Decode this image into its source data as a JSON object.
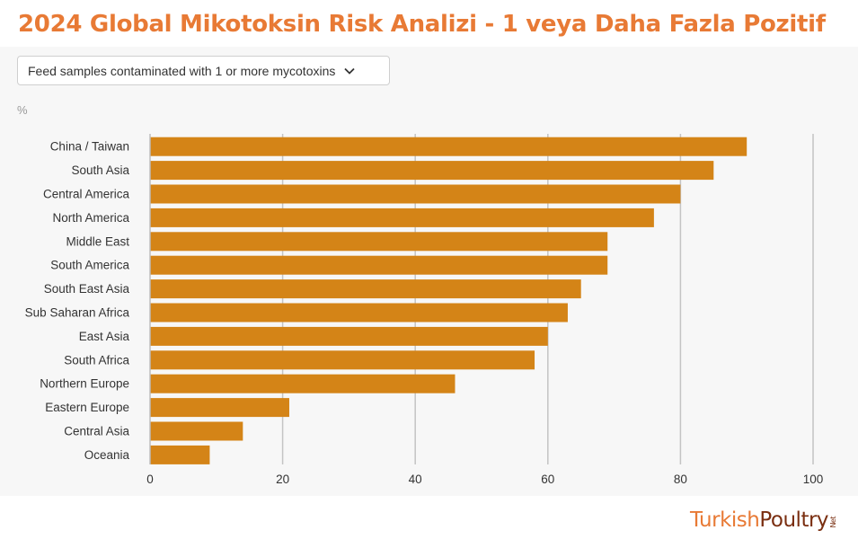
{
  "header": {
    "title": "2024 Global Mikotoksin Risk Analizi  - 1 veya Daha Fazla Pozitif"
  },
  "filter": {
    "label": "Feed samples contaminated with 1 or more mycotoxins"
  },
  "logo": {
    "part1": "Turkish",
    "part2": "Poultry",
    "suffix": "Net"
  },
  "colors": {
    "title": "#e87a35",
    "bar": "#d48417",
    "grid": "#c4c4c4",
    "logo_part1": "#e87a35",
    "logo_part2": "#7a2e10"
  },
  "icons": {
    "dropdown": "chevron-down-icon"
  },
  "chart_data": {
    "type": "bar",
    "orientation": "horizontal",
    "unit_label": "%",
    "categories": [
      "China / Taiwan",
      "South Asia",
      "Central America",
      "North America",
      "Middle East",
      "South America",
      "South East Asia",
      "Sub Saharan Africa",
      "East Asia",
      "South Africa",
      "Northern Europe",
      "Eastern Europe",
      "Central Asia",
      "Oceania"
    ],
    "values": [
      90,
      85,
      80,
      76,
      69,
      69,
      65,
      63,
      60,
      58,
      46,
      21,
      14,
      9
    ],
    "xlim": [
      0,
      100
    ],
    "xticks": [
      0,
      20,
      40,
      60,
      80,
      100
    ],
    "grid": true
  }
}
